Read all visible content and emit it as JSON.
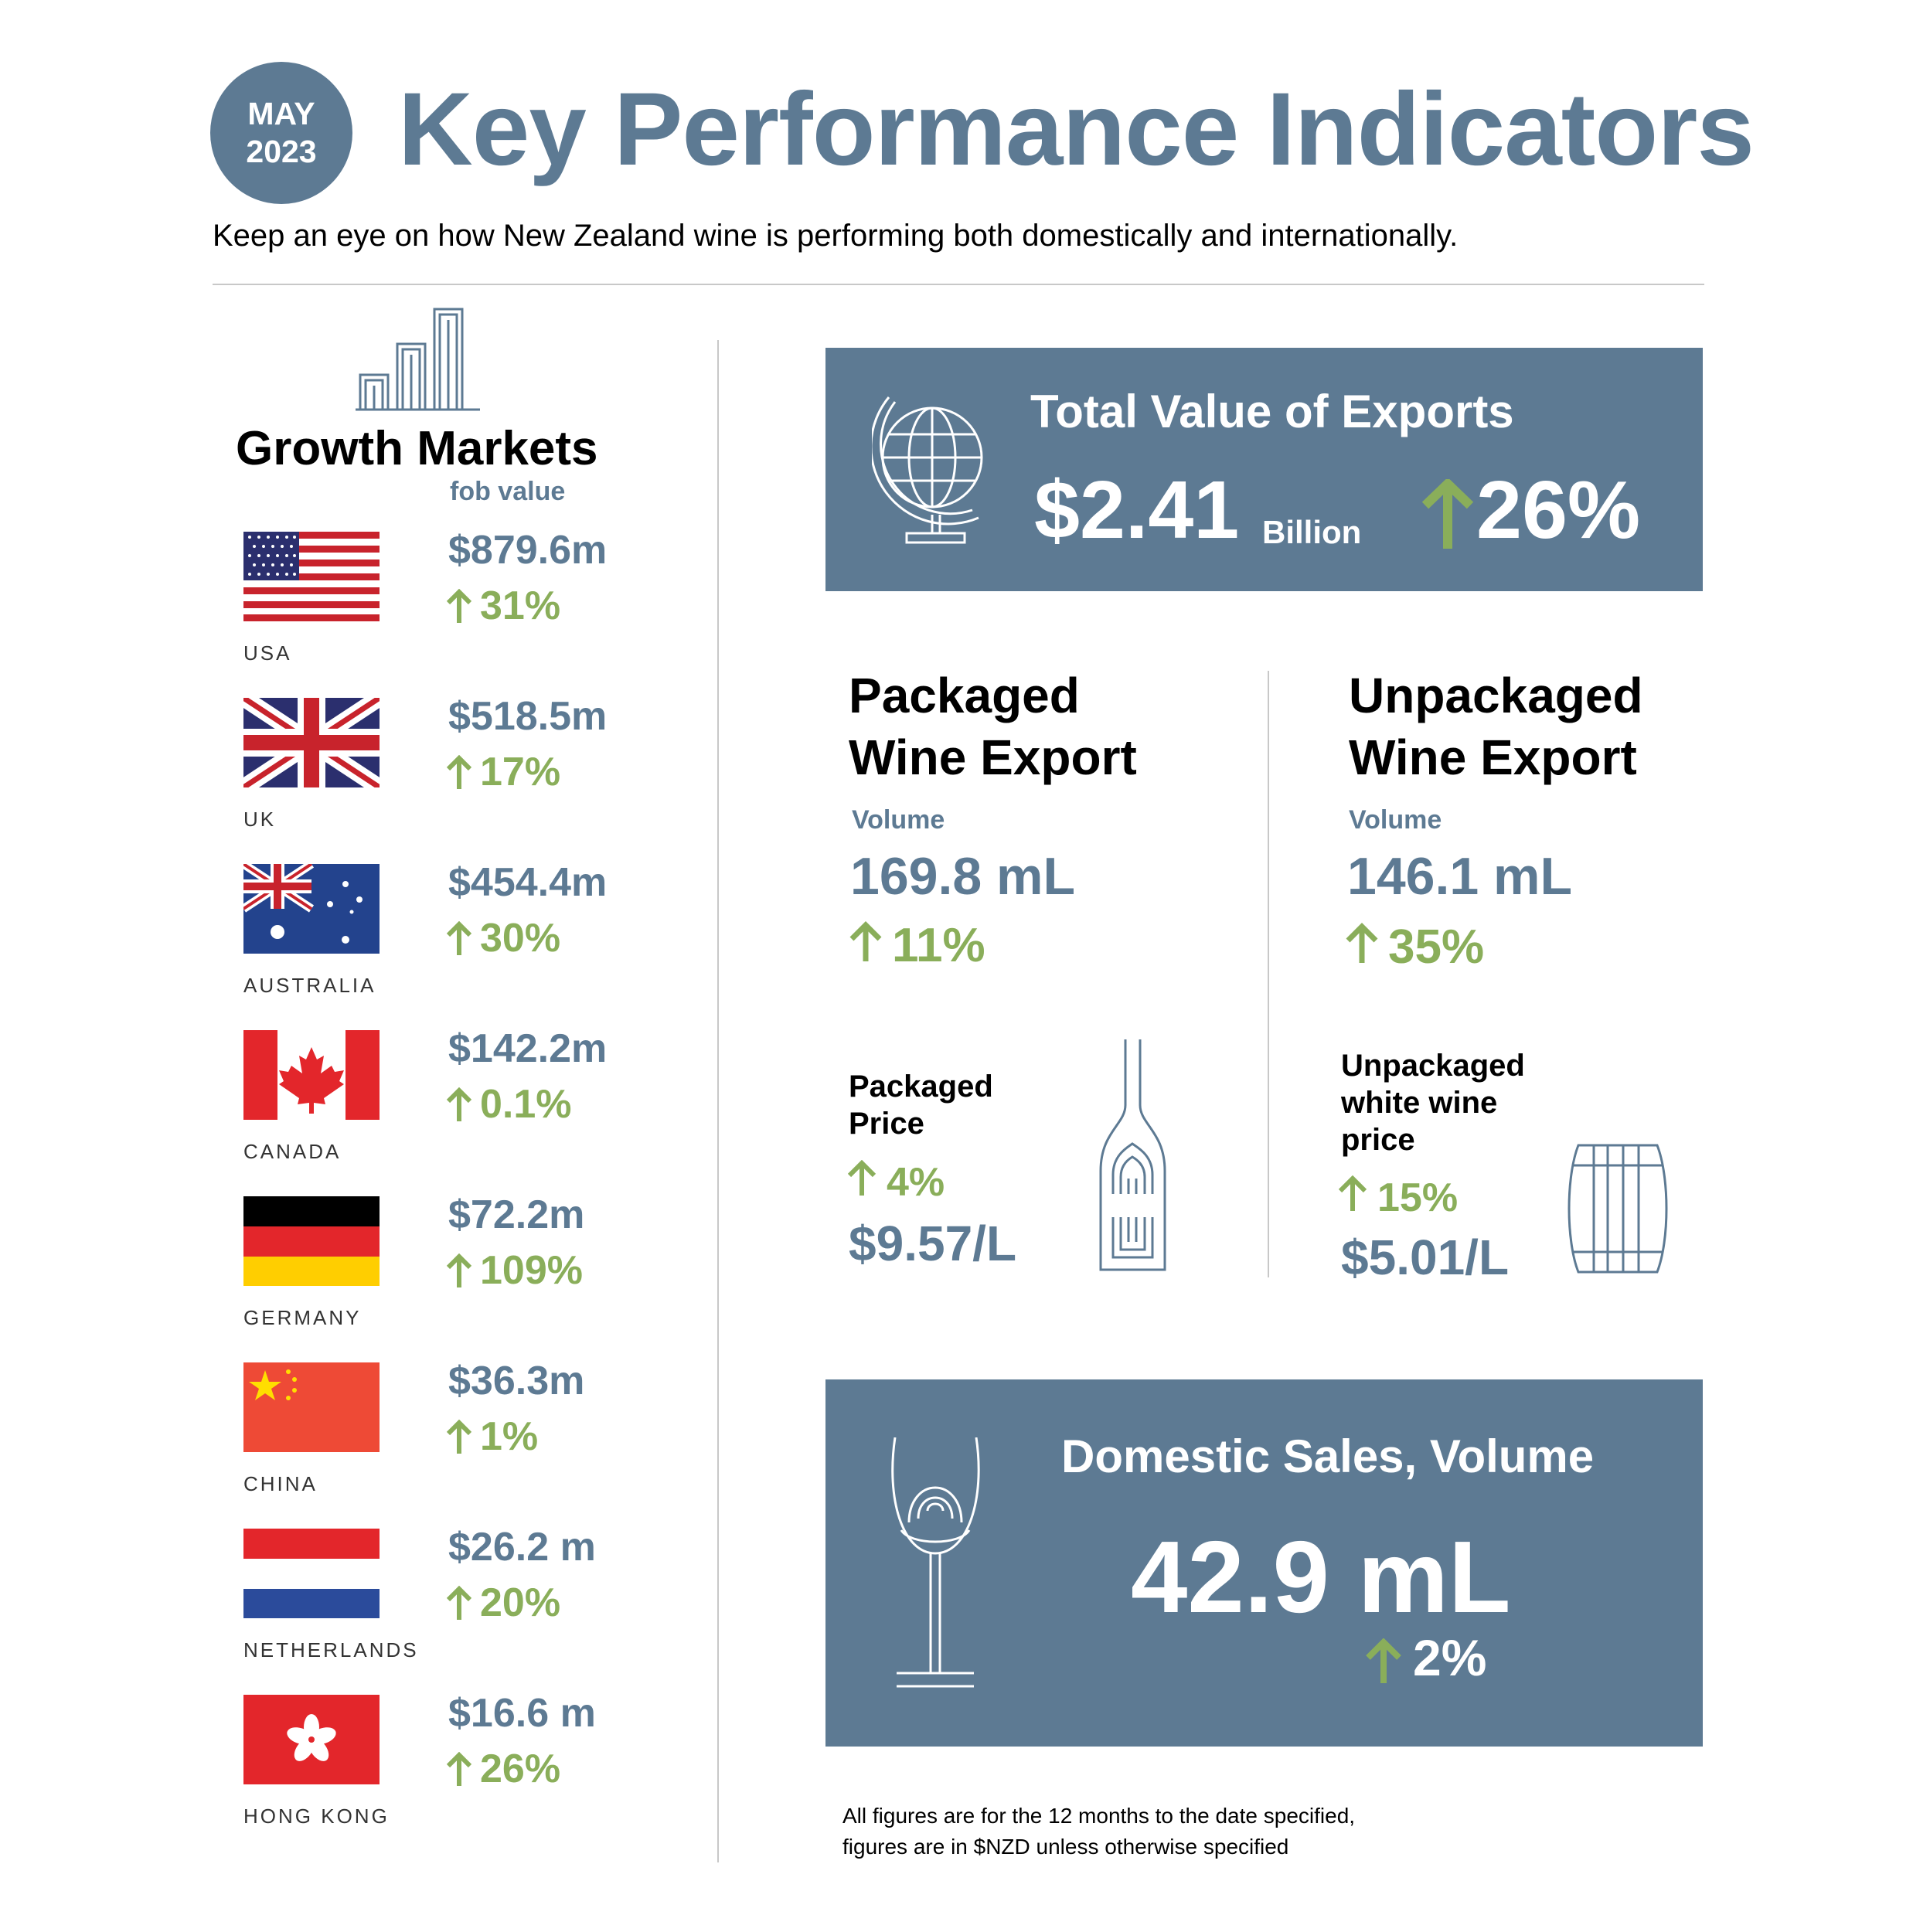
{
  "badge": {
    "month": "MAY",
    "year": "2023"
  },
  "title": "Key Performance Indicators",
  "subtitle": "Keep an eye on how New Zealand wine is performing both domestically and internationally.",
  "growth_markets": {
    "title": "Growth Markets",
    "subtitle": "fob value",
    "markets": [
      {
        "country": "USA",
        "value": "$879.6m",
        "change": "31%"
      },
      {
        "country": "UK",
        "value": "$518.5m",
        "change": "17%"
      },
      {
        "country": "AUSTRALIA",
        "value": "$454.4m",
        "change": "30%"
      },
      {
        "country": "CANADA",
        "value": "$142.2m",
        "change": "0.1%"
      },
      {
        "country": "GERMANY",
        "value": "$72.2m",
        "change": "109%"
      },
      {
        "country": "CHINA",
        "value": "$36.3m",
        "change": "1%"
      },
      {
        "country": "NETHERLANDS",
        "value": "$26.2 m",
        "change": "20%"
      },
      {
        "country": "HONG KONG",
        "value": "$16.6 m",
        "change": "26%"
      }
    ]
  },
  "total_exports": {
    "title": "Total Value of Exports",
    "value": "$2.41",
    "unit": "Billion",
    "change": "26%"
  },
  "packaged": {
    "heading_line1": "Packaged",
    "heading_line2": "Wine Export",
    "volume_label": "Volume",
    "volume": "169.8 mL",
    "volume_change": "11%",
    "price_label_line1": "Packaged",
    "price_label_line2": "Price",
    "price_change": "4%",
    "price": "$9.57/L"
  },
  "unpackaged": {
    "heading_line1": "Unpackaged",
    "heading_line2": "Wine Export",
    "volume_label": "Volume",
    "volume": "146.1 mL",
    "volume_change": "35%",
    "price_label_line1": "Unpackaged",
    "price_label_line2": "white wine",
    "price_label_line3": "price",
    "price_change": "15%",
    "price": "$5.01/L"
  },
  "domestic": {
    "title": "Domestic Sales, Volume",
    "value": "42.9 mL",
    "change": "2%"
  },
  "footnote": {
    "line1": "All figures are for the 12 months to the date specified,",
    "line2": "figures are in $NZD unless otherwise specified"
  },
  "colors": {
    "slate": "#5d7a93",
    "green": "#8aae5a"
  },
  "icons": [
    "bar-chart-icon",
    "globe-icon",
    "wine-bottle-icon",
    "barrel-icon",
    "wine-glass-icon",
    "arrow-up-icon"
  ]
}
